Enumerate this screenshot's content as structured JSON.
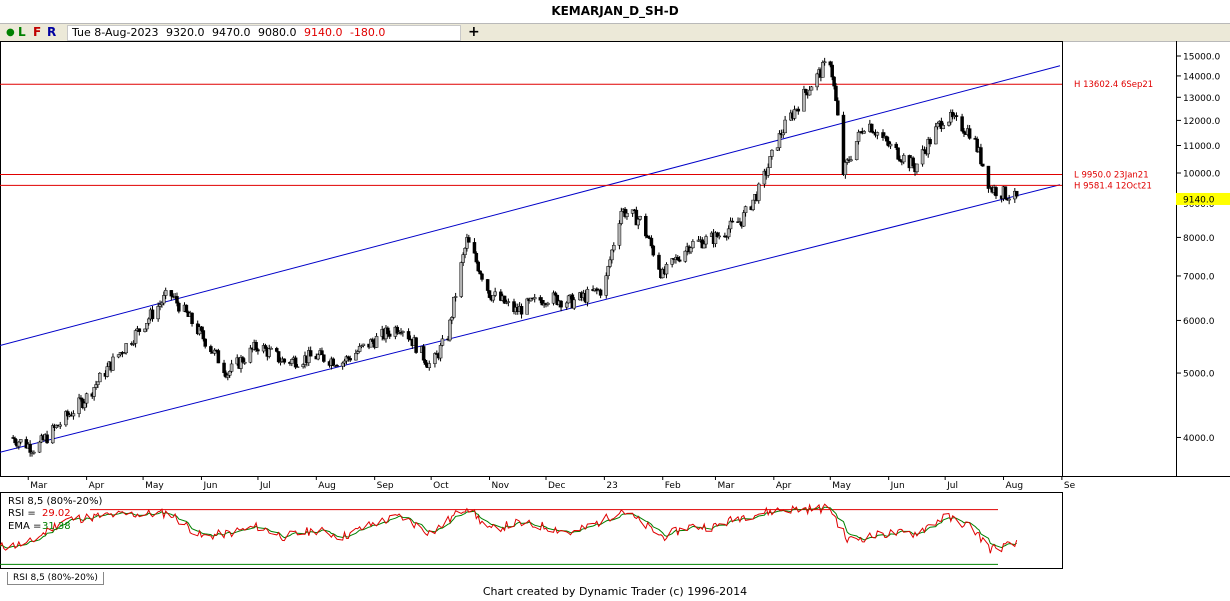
{
  "window": {
    "title": "KEMARJAN_D_SH-D"
  },
  "toolbar": {
    "buttons": [
      "L",
      "F",
      "R"
    ],
    "quote": {
      "date": "Tue 8-Aug-2023",
      "open": "9320.0",
      "high": "9470.0",
      "low": "9080.0",
      "close": "9140.0",
      "change": "-180.0"
    },
    "add_label": "+"
  },
  "rsi_panel": {
    "header": "RSI 8,5 (80%-20%)",
    "rsi_label": "RSI =",
    "rsi_value": "29.02",
    "ema_label": "EMA =",
    "ema_value": "31.38",
    "tab_label": "RSI 8,5 (80%-20%)"
  },
  "footer": {
    "text": "Chart created by Dynamic Trader  (c) 1996-2014"
  },
  "colors": {
    "up": "#b4b4b4",
    "down": "#000000",
    "channel": "#0000c8",
    "levels": "#e00000",
    "rsi": "#e00000",
    "ema": "#008000",
    "price_tag": "#ffff00"
  },
  "chart_data": {
    "type": "candlestick",
    "title": "KEMARJAN_D_SH-D",
    "y_scale": "log",
    "ylim": [
      3500,
      15800
    ],
    "y_ticks": [
      "4000.0",
      "5000.0",
      "6000.0",
      "7000.0",
      "8000.0",
      "9000.0",
      "10000.0",
      "11000.0",
      "12000.0",
      "13000.0",
      "14000.0",
      "15000.0"
    ],
    "x_ticks": [
      "Mar",
      "Apr",
      "May",
      "Jun",
      "Jul",
      "Aug",
      "Sep",
      "Oct",
      "Nov",
      "Dec",
      "23",
      "Feb",
      "Mar",
      "Apr",
      "May",
      "Jun",
      "Jul",
      "Aug",
      "Se"
    ],
    "last_price": "9140.0",
    "price_path": [
      [
        "2022-02-20",
        4000
      ],
      [
        "2022-03-05",
        3850
      ],
      [
        "2022-03-20",
        4250
      ],
      [
        "2022-04-01",
        4600
      ],
      [
        "2022-04-15",
        5200
      ],
      [
        "2022-05-01",
        5900
      ],
      [
        "2022-05-15",
        6600
      ],
      [
        "2022-06-01",
        5700
      ],
      [
        "2022-06-15",
        5000
      ],
      [
        "2022-07-01",
        5500
      ],
      [
        "2022-07-15",
        5200
      ],
      [
        "2022-08-01",
        5300
      ],
      [
        "2022-08-15",
        5200
      ],
      [
        "2022-09-01",
        5600
      ],
      [
        "2022-09-15",
        5900
      ],
      [
        "2022-10-01",
        5100
      ],
      [
        "2022-10-10",
        5700
      ],
      [
        "2022-10-20",
        7900
      ],
      [
        "2022-11-01",
        6600
      ],
      [
        "2022-11-15",
        6200
      ],
      [
        "2022-12-01",
        6500
      ],
      [
        "2022-12-15",
        6400
      ],
      [
        "2023-01-01",
        6700
      ],
      [
        "2023-01-10",
        8800
      ],
      [
        "2023-01-20",
        8500
      ],
      [
        "2023-02-01",
        7000
      ],
      [
        "2023-02-15",
        7800
      ],
      [
        "2023-03-01",
        8000
      ],
      [
        "2023-03-15",
        8500
      ],
      [
        "2023-03-25",
        9500
      ],
      [
        "2023-04-05",
        11500
      ],
      [
        "2023-04-20",
        13500
      ],
      [
        "2023-05-01",
        14800
      ],
      [
        "2023-05-08",
        10000
      ],
      [
        "2023-05-20",
        12000
      ],
      [
        "2023-06-01",
        11000
      ],
      [
        "2023-06-15",
        10200
      ],
      [
        "2023-07-01",
        12200
      ],
      [
        "2023-07-15",
        11500
      ],
      [
        "2023-07-25",
        9500
      ],
      [
        "2023-08-08",
        9140
      ]
    ],
    "horizontal_levels": [
      {
        "label": "H 13602.4 6Sep21",
        "value": 13602.4
      },
      {
        "label": "L 9950.0 23Jan21",
        "value": 9950.0
      },
      {
        "label": "H 9581.4 12Oct21",
        "value": 9581.4
      }
    ],
    "channel_lines": [
      {
        "points": [
          [
            "2022-02-14",
            5500
          ],
          [
            "2023-08-31",
            14500
          ]
        ]
      },
      {
        "points": [
          [
            "2022-02-14",
            3800
          ],
          [
            "2023-08-31",
            9600
          ]
        ]
      }
    ],
    "rsi": {
      "name": "RSI 8,5 (80%-20%)",
      "ylim": [
        0,
        100
      ],
      "bands": [
        80,
        20
      ],
      "last_rsi": 29.02,
      "last_ema": 31.38,
      "rsi_path": [
        [
          "2022-02-14",
          25
        ],
        [
          "2022-03-01",
          30
        ],
        [
          "2022-03-20",
          65
        ],
        [
          "2022-04-15",
          72
        ],
        [
          "2022-05-15",
          75
        ],
        [
          "2022-06-01",
          40
        ],
        [
          "2022-06-15",
          45
        ],
        [
          "2022-07-01",
          55
        ],
        [
          "2022-07-15",
          40
        ],
        [
          "2022-08-01",
          50
        ],
        [
          "2022-08-15",
          40
        ],
        [
          "2022-09-01",
          60
        ],
        [
          "2022-09-15",
          70
        ],
        [
          "2022-10-01",
          45
        ],
        [
          "2022-10-20",
          85
        ],
        [
          "2022-11-01",
          50
        ],
        [
          "2022-11-15",
          60
        ],
        [
          "2022-12-01",
          55
        ],
        [
          "2022-12-15",
          45
        ],
        [
          "2023-01-01",
          65
        ],
        [
          "2023-01-10",
          80
        ],
        [
          "2023-02-01",
          40
        ],
        [
          "2023-02-15",
          55
        ],
        [
          "2023-03-01",
          55
        ],
        [
          "2023-03-15",
          70
        ],
        [
          "2023-04-05",
          80
        ],
        [
          "2023-05-01",
          82
        ],
        [
          "2023-05-10",
          35
        ],
        [
          "2023-06-01",
          45
        ],
        [
          "2023-06-15",
          45
        ],
        [
          "2023-07-01",
          70
        ],
        [
          "2023-07-15",
          55
        ],
        [
          "2023-07-25",
          22
        ],
        [
          "2023-08-08",
          29
        ]
      ]
    }
  }
}
